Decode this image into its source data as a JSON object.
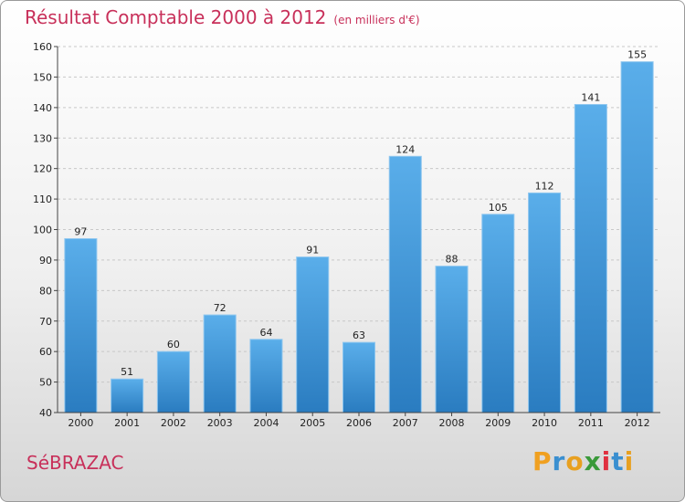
{
  "header": {
    "title": "Résultat Comptable 2000 à 2012",
    "subtitle": "(en milliers d'€)"
  },
  "footer": {
    "commune": "SéBRAZAC",
    "logo": {
      "text": "Proxiti",
      "letters": [
        "P",
        "r",
        "o",
        "x",
        "i",
        "t",
        "i"
      ],
      "colors": [
        "#f0a020",
        "#3a8fd0",
        "#e8a020",
        "#3a9a3a",
        "#e03040",
        "#3a8fd0",
        "#e8a020"
      ]
    }
  },
  "chart_data": {
    "type": "bar",
    "title": "Résultat Comptable 2000 à 2012",
    "subtitle": "(en milliers d'€)",
    "xlabel": "",
    "ylabel": "",
    "categories": [
      "2000",
      "2001",
      "2002",
      "2003",
      "2004",
      "2005",
      "2006",
      "2007",
      "2008",
      "2009",
      "2010",
      "2011",
      "2012"
    ],
    "values": [
      97,
      51,
      60,
      72,
      64,
      91,
      63,
      124,
      88,
      105,
      112,
      141,
      155
    ],
    "ylim": [
      40,
      160
    ],
    "yticks": [
      40,
      50,
      60,
      70,
      80,
      90,
      100,
      110,
      120,
      130,
      140,
      150,
      160
    ],
    "grid": true,
    "bar_color_top": "#5aaeea",
    "bar_color_bottom": "#2a7cc0"
  }
}
